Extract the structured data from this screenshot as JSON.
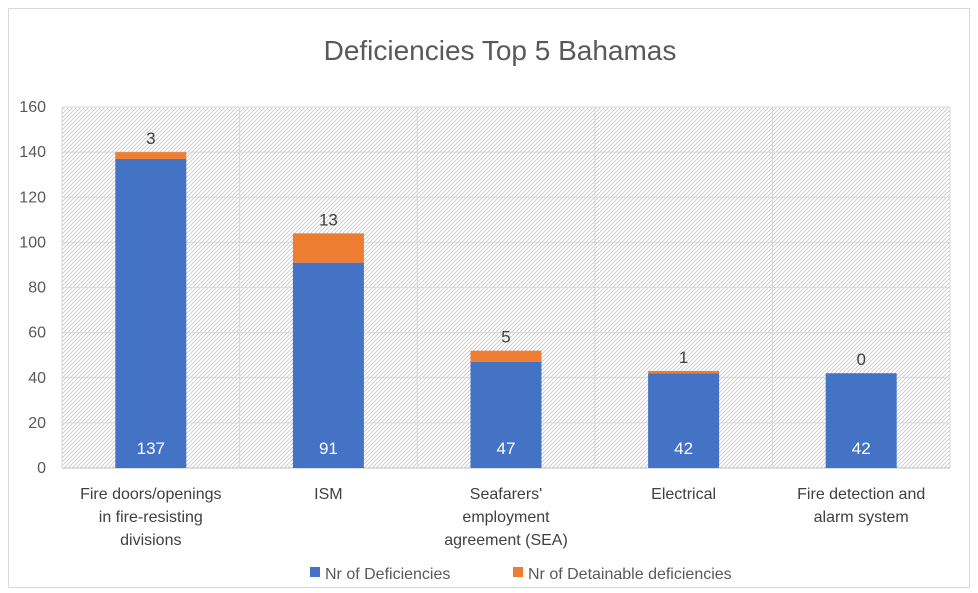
{
  "chart_data": {
    "type": "bar",
    "stacked": true,
    "title": "Deficiencies Top 5 Bahamas",
    "categories": [
      [
        "Fire doors/openings",
        "in fire-resisting",
        "divisions"
      ],
      [
        "ISM"
      ],
      [
        "Seafarers'",
        "employment",
        "agreement (SEA)"
      ],
      [
        "Electrical"
      ],
      [
        "Fire detection and",
        "alarm system"
      ]
    ],
    "series": [
      {
        "name": "Nr of Deficiencies",
        "values": [
          137,
          91,
          47,
          42,
          42
        ],
        "color": "#4472c4"
      },
      {
        "name": "Nr of Detainable deficiencies",
        "values": [
          3,
          13,
          5,
          1,
          0
        ],
        "color": "#ed7d31"
      }
    ],
    "ylim": [
      0,
      160
    ],
    "yticks": [
      0,
      20,
      40,
      60,
      80,
      100,
      120,
      140,
      160
    ],
    "grid": true,
    "legend": "bottom"
  }
}
